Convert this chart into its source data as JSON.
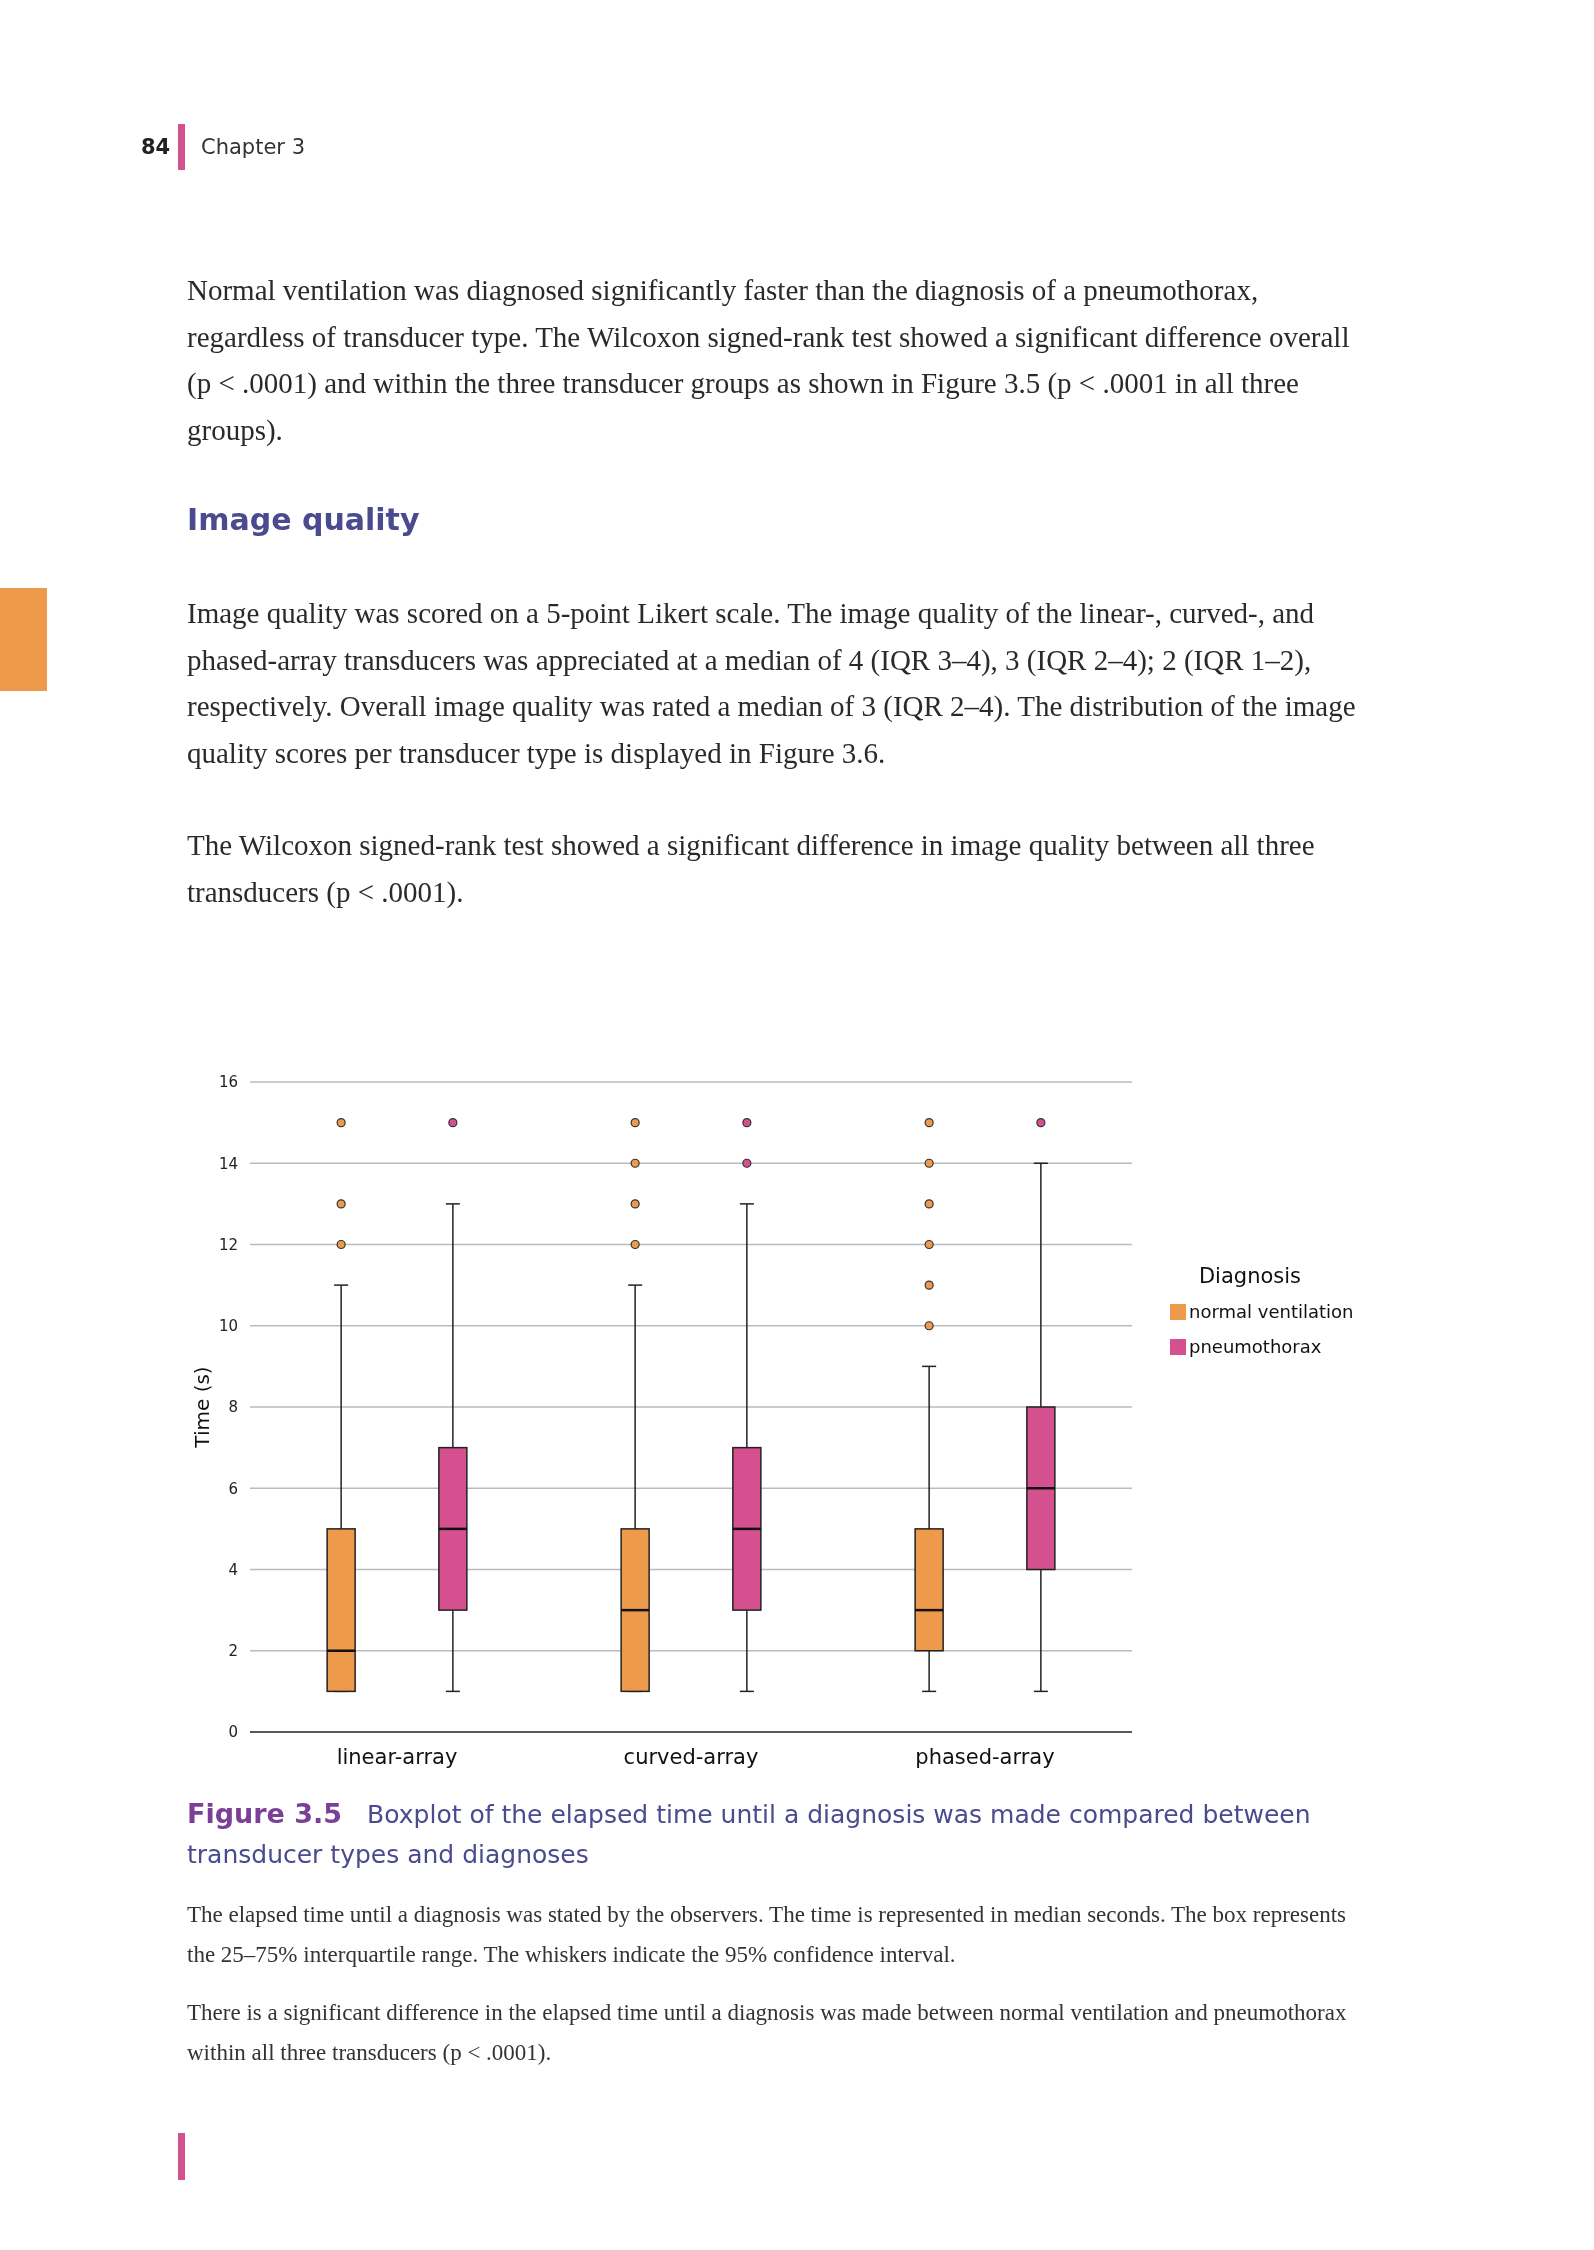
{
  "chart_data": {
    "type": "box",
    "title": "Figure 3.5",
    "subtitle": "Boxplot of the elapsed time until a diagnosis was made compared between transducer types and diagnoses",
    "ylabel": "Time (s)",
    "legend_title": "Diagnosis",
    "legend": "right",
    "grid": "y",
    "categories": [
      "linear-array",
      "curved-array",
      "phased-array"
    ],
    "ylim": [
      0,
      16
    ],
    "yticks": [
      0,
      2,
      4,
      6,
      8,
      10,
      12,
      14,
      16
    ],
    "series": [
      {
        "name": "normal ventilation",
        "color": "#ee9a4d",
        "boxes": [
          {
            "low": 1,
            "q1": 1,
            "median": 2,
            "q3": 5,
            "high": 11,
            "outliers": [
              12,
              13,
              15
            ]
          },
          {
            "low": 1,
            "q1": 1,
            "median": 3,
            "q3": 5,
            "high": 11,
            "outliers": [
              12,
              13,
              14,
              15
            ]
          },
          {
            "low": 1,
            "q1": 2,
            "median": 3,
            "q3": 5,
            "high": 9,
            "outliers": [
              10,
              11,
              12,
              13,
              14,
              15
            ]
          }
        ]
      },
      {
        "name": "pneumothorax",
        "color": "#d5508e",
        "boxes": [
          {
            "low": 1,
            "q1": 3,
            "median": 5,
            "q3": 7,
            "high": 13,
            "outliers": [
              15
            ]
          },
          {
            "low": 1,
            "q1": 3,
            "median": 5,
            "q3": 7,
            "high": 13,
            "outliers": [
              14,
              15
            ]
          },
          {
            "low": 1,
            "q1": 4,
            "median": 6,
            "q3": 8,
            "high": 14,
            "outliers": [
              15
            ]
          }
        ]
      }
    ],
    "annotations": [
      "84",
      "Chapter 3",
      "Normal ventilation was diagnosed significantly faster than the diagnosis of a pneumothorax, regardless of transducer type. The Wilcoxon signed-rank test showed a significant difference overall (p < .0001) and within the three transducer groups as shown in Figure 3.5 (p < .0001 in all three groups).",
      "Image quality",
      "Image quality was scored on a 5-point Likert scale. The image quality of the linear-, curved-, and phased-array transducers was appreciated at a median of 4 (IQR 3–4), 3 (IQR 2–4); 2 (IQR 1–2), respectively. Overall image quality was rated a median of 3 (IQR 2–4). The distribution of the image quality scores per transducer type is displayed in Figure 3.6.",
      "The Wilcoxon signed-rank test showed a significant difference in image quality between all three transducers (p < .0001).",
      "The elapsed time until a diagnosis was stated by the observers. The time is represented in median seconds. The box represents the 25–75% interquartile range. The whiskers indicate the 95% confidence interval.",
      "There is a significant difference in the elapsed time until a diagnosis was made between normal ventilation and pneumothorax within all three transducers (p < .0001)."
    ]
  }
}
